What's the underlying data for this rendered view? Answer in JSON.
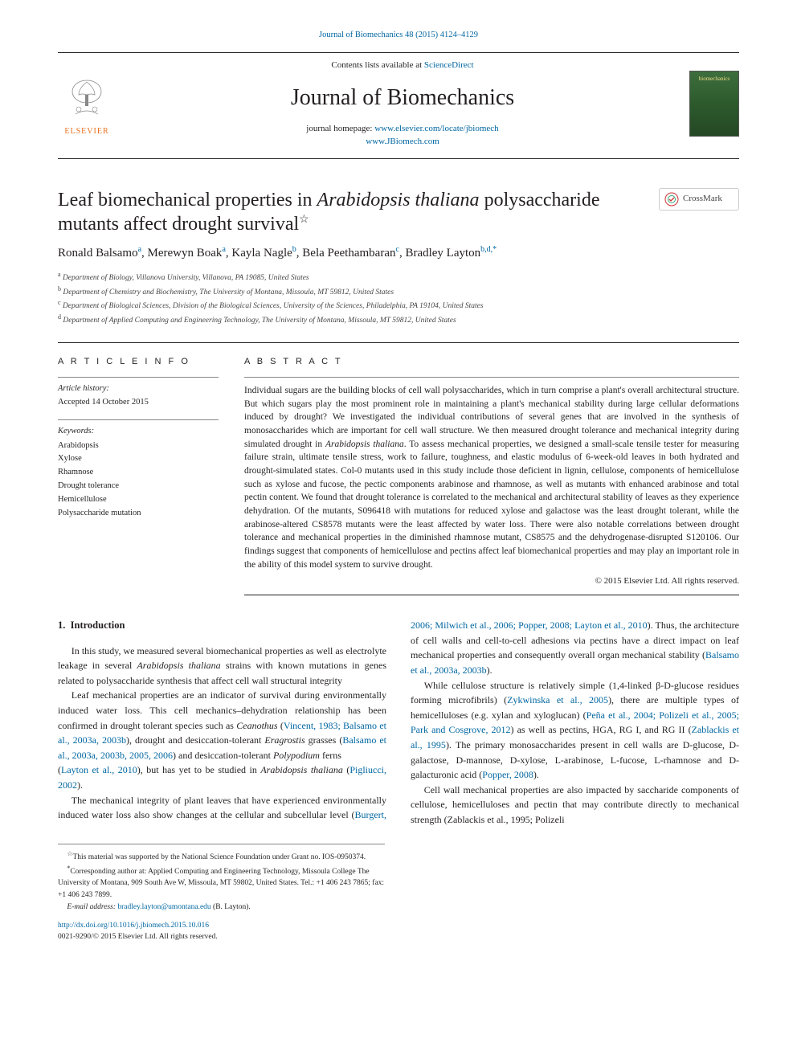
{
  "topBar": {
    "citation": "Journal of Biomechanics 48 (2015) 4124–4129"
  },
  "header": {
    "contentsPrefix": "Contents lists available at ",
    "contentsLink": "ScienceDirect",
    "journal": "Journal of Biomechanics",
    "homepageLabel": "journal homepage: ",
    "homepage1": "www.elsevier.com/locate/jbiomech",
    "homepage2": "www.JBiomech.com",
    "publisher": "ELSEVIER",
    "coverLabel": "biomechanics"
  },
  "article": {
    "titlePrefix": "Leaf biomechanical properties in ",
    "titleItalic": "Arabidopsis thaliana",
    "titleSuffix": " polysaccharide mutants affect drought survival",
    "titleStar": "☆",
    "crossmarkLabel": "CrossMark",
    "authors": [
      {
        "name": "Ronald Balsamo",
        "aff": "a"
      },
      {
        "name": "Merewyn Boak",
        "aff": "a"
      },
      {
        "name": "Kayla Nagle",
        "aff": "b"
      },
      {
        "name": "Bela Peethambaran",
        "aff": "c"
      },
      {
        "name": "Bradley Layton",
        "aff": "b,d,",
        "corr": "*"
      }
    ],
    "affiliations": [
      {
        "sup": "a",
        "text": "Department of Biology, Villanova University, Villanova, PA 19085, United States"
      },
      {
        "sup": "b",
        "text": "Department of Chemistry and Biochemistry, The University of Montana, Missoula, MT 59812, United States"
      },
      {
        "sup": "c",
        "text": "Department of Biological Sciences, Division of the Biological Sciences, University of the Sciences, Philadelphia, PA 19104, United States"
      },
      {
        "sup": "d",
        "text": "Department of Applied Computing and Engineering Technology, The University of Montana, Missoula, MT 59812, United States"
      }
    ]
  },
  "info": {
    "heading": "A R T I C L E   I N F O",
    "historyLabel": "Article history:",
    "historyText": "Accepted 14 October 2015",
    "keywordsLabel": "Keywords:",
    "keywords": [
      "Arabidopsis",
      "Xylose",
      "Rhamnose",
      "Drought tolerance",
      "Hemicellulose",
      "Polysaccharide mutation"
    ]
  },
  "abstract": {
    "heading": "A B S T R A C T",
    "body": "Individual sugars are the building blocks of cell wall polysaccharides, which in turn comprise a plant's overall architectural structure. But which sugars play the most prominent role in maintaining a plant's mechanical stability during large cellular deformations induced by drought? We investigated the individual contributions of several genes that are involved in the synthesis of monosaccharides which are important for cell wall structure. We then measured drought tolerance and mechanical integrity during simulated drought in Arabidopsis thaliana. To assess mechanical properties, we designed a small-scale tensile tester for measuring failure strain, ultimate tensile stress, work to failure, toughness, and elastic modulus of 6-week-old leaves in both hydrated and drought-simulated states. Col-0 mutants used in this study include those deficient in lignin, cellulose, components of hemicellulose such as xylose and fucose, the pectic components arabinose and rhamnose, as well as mutants with enhanced arabinose and total pectin content. We found that drought tolerance is correlated to the mechanical and architectural stability of leaves as they experience dehydration. Of the mutants, S096418 with mutations for reduced xylose and galactose was the least drought tolerant, while the arabinose-altered CS8578 mutants were the least affected by water loss. There were also notable correlations between drought tolerance and mechanical properties in the diminished rhamnose mutant, CS8575 and the dehydrogenase-disrupted S120106. Our findings suggest that components of hemicellulose and pectins affect leaf biomechanical properties and may play an important role in the ability of this model system to survive drought.",
    "copyright": "© 2015 Elsevier Ltd. All rights reserved."
  },
  "body": {
    "sectionNumber": "1.",
    "sectionTitle": "Introduction",
    "paragraphs": [
      "In this study, we measured several biomechanical properties as well as electrolyte leakage in several Arabidopsis thaliana strains with known mutations in genes related to polysaccharide synthesis that affect cell wall structural integrity",
      "Leaf mechanical properties are an indicator of survival during environmentally induced water loss. This cell mechanics–dehydration relationship has been confirmed in drought tolerant species such as Ceanothus (Vincent, 1983; Balsamo et al., 2003a, 2003b), drought and desiccation-tolerant Eragrostis grasses (Balsamo et al., 2003a, 2003b, 2005, 2006) and desiccation-tolerant Polypodium ferns",
      "(Layton et al., 2010), but has yet to be studied in Arabidopsis thaliana (Pigliucci, 2002).",
      "The mechanical integrity of plant leaves that have experienced environmentally induced water loss also show changes at the cellular and subcellular level (Burgert, 2006; Milwich et al., 2006; Popper, 2008; Layton et al., 2010). Thus, the architecture of cell walls and cell-to-cell adhesions via pectins have a direct impact on leaf mechanical properties and consequently overall organ mechanical stability (Balsamo et al., 2003a, 2003b).",
      "While cellulose structure is relatively simple (1,4-linked β-D-glucose residues forming microfibrils) (Zykwinska et al., 2005), there are multiple types of hemicelluloses (e.g. xylan and xyloglucan) (Peña et al., 2004; Polizeli et al., 2005; Park and Cosgrove, 2012) as well as pectins, HGA, RG I, and RG II (Zablackis et al., 1995). The primary monosaccharides present in cell walls are D-glucose, D-galactose, D-mannose, D-xylose, L-arabinose, L-fucose, L-rhamnose and D-galacturonic acid (Popper, 2008).",
      "Cell wall mechanical properties are also impacted by saccharide components of cellulose, hemicelluloses and pectin that may contribute directly to mechanical strength (Zablackis et al., 1995; Polizeli"
    ]
  },
  "footnotes": {
    "funding": "This material was supported by the National Science Foundation under Grant no. IOS-0950374.",
    "corresponding": "Corresponding author at: Applied Computing and Engineering Technology, Missoula College The University of Montana, 909 South Ave W, Missoula, MT 59802, United States. Tel.: +1 406 243 7865; fax: +1 406 243 7899.",
    "emailLabel": "E-mail address: ",
    "email": "bradley.layton@umontana.edu",
    "emailAfter": " (B. Layton)."
  },
  "bottom": {
    "doi": "http://dx.doi.org/10.1016/j.jbiomech.2015.10.016",
    "issn": "0021-9290/© 2015 Elsevier Ltd. All rights reserved."
  },
  "colors": {
    "link": "#0066a1",
    "text": "#231f20",
    "elsevierOrange": "#e9711c",
    "coverBg": "#2d5a2d",
    "rule": "#888888"
  },
  "typography": {
    "bodyFont": "Georgia, 'Times New Roman', serif",
    "journalTitleSize": 28,
    "articleTitleSize": 24,
    "authorSize": 15,
    "bodySize": 12,
    "abstractSize": 11.5,
    "affiliationSize": 9.5
  }
}
